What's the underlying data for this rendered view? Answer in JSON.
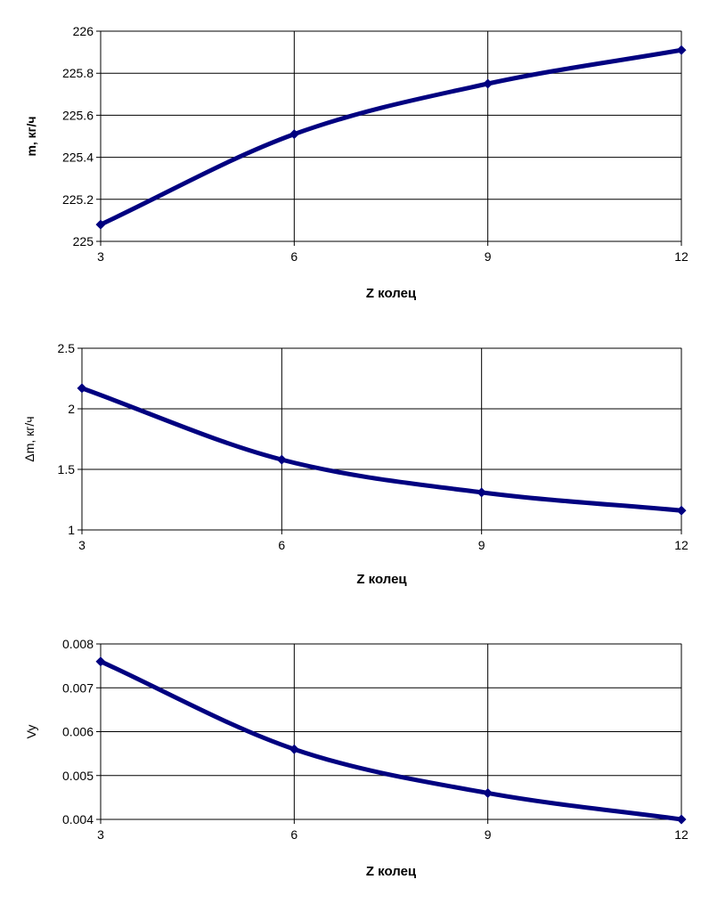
{
  "chart_data": [
    {
      "type": "line",
      "title": "",
      "xlabel": "Z колец",
      "ylabel": "m, кг/ч",
      "x": [
        3,
        6,
        9,
        12
      ],
      "series": [
        {
          "values": [
            225.08,
            225.51,
            225.75,
            225.91
          ]
        }
      ],
      "xticks": [
        "3",
        "6",
        "9",
        "12"
      ],
      "yticks": [
        "225",
        "225.2",
        "225.4",
        "225.6",
        "225.8",
        "226"
      ],
      "xlim": [
        3,
        12
      ],
      "ylim": [
        225,
        226
      ],
      "grid": true,
      "legend": "none",
      "line_color": "#000080"
    },
    {
      "type": "line",
      "title": "",
      "xlabel": "Z колец",
      "ylabel": "Δm, кг/ч",
      "x": [
        3,
        6,
        9,
        12
      ],
      "series": [
        {
          "values": [
            2.17,
            1.58,
            1.31,
            1.16
          ]
        }
      ],
      "xticks": [
        "3",
        "6",
        "9",
        "12"
      ],
      "yticks": [
        "1",
        "1.5",
        "2",
        "2.5"
      ],
      "xlim": [
        3,
        12
      ],
      "ylim": [
        1,
        2.5
      ],
      "grid": true,
      "legend": "none",
      "line_color": "#000080"
    },
    {
      "type": "line",
      "title": "",
      "xlabel": "Z колец",
      "ylabel": "Vy",
      "x": [
        3,
        6,
        9,
        12
      ],
      "series": [
        {
          "values": [
            0.0076,
            0.0056,
            0.0046,
            0.004
          ]
        }
      ],
      "xticks": [
        "3",
        "6",
        "9",
        "12"
      ],
      "yticks": [
        "0.004",
        "0.005",
        "0.006",
        "0.007",
        "0.008"
      ],
      "xlim": [
        3,
        12
      ],
      "ylim": [
        0.004,
        0.008
      ],
      "grid": true,
      "legend": "none",
      "line_color": "#000080"
    }
  ]
}
